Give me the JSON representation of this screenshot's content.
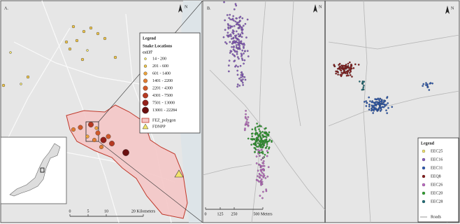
{
  "panel_a": {
    "label": "A.",
    "north": "N",
    "legend": {
      "title": "Legend",
      "subtitle": "Snake Locations",
      "field": "cs137",
      "classes": [
        {
          "label": "14 - 200",
          "color": "#f2e36b"
        },
        {
          "label": "201 - 600",
          "color": "#f0c64a"
        },
        {
          "label": "601 - 1400",
          "color": "#eba13a"
        },
        {
          "label": "1401 - 2200",
          "color": "#e27d32"
        },
        {
          "label": "2201 - 4300",
          "color": "#d0592a"
        },
        {
          "label": "4301 - 7500",
          "color": "#b63a22"
        },
        {
          "label": "7501 - 13000",
          "color": "#93201a"
        },
        {
          "label": "13001 - 22284",
          "color": "#6a0f10"
        }
      ],
      "fez": "FEZ_polygon",
      "fdnpp": "FDNPP"
    },
    "scale": [
      "0",
      "5",
      "10",
      "20 Kilometers"
    ]
  },
  "panel_b": {
    "label": "B.",
    "north": "N",
    "legend": {
      "title": "Legend",
      "series": [
        {
          "label": "EEC25",
          "color": "#f2e36b"
        },
        {
          "label": "EEC16",
          "color": "#8b5cc6"
        },
        {
          "label": "EEC31",
          "color": "#2a5ab8"
        },
        {
          "label": "EEQ8",
          "color": "#8b1a1a"
        },
        {
          "label": "EEC26",
          "color": "#c26ac9"
        },
        {
          "label": "EEC20",
          "color": "#2fa52f"
        },
        {
          "label": "EEC28",
          "color": "#1f6f7a"
        }
      ],
      "roads": "Roads"
    },
    "scale": [
      "0",
      "125",
      "250",
      "500 Meters"
    ]
  }
}
